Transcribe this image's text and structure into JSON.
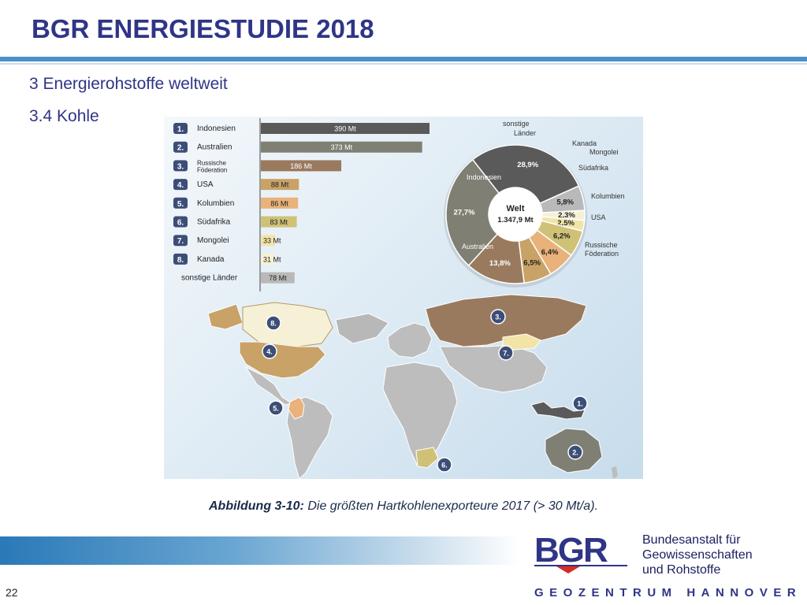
{
  "header": {
    "title": "BGR ENERGIESTUDIE 2018",
    "section": "3 Energierohstoffe weltweit",
    "subsection": "3.4 Kohle"
  },
  "colors": {
    "title": "#2f3586",
    "accent": "#4a90c8",
    "indonesien": "#5a5a5a",
    "australien": "#7f7f74",
    "russland": "#9a7a5e",
    "usa": "#c9a267",
    "kolumbien": "#e8b27a",
    "suedafrika": "#cfc277",
    "mongolei": "#f2e4a6",
    "kanada": "#f6f0d6",
    "sonstige": "#b9b9b9"
  },
  "chart_data": [
    {
      "type": "bar",
      "orientation": "horizontal",
      "unit": "Mt",
      "categories": [
        "Indonesien",
        "Australien",
        "Russische Föderation",
        "USA",
        "Kolumbien",
        "Südafrika",
        "Mongolei",
        "Kanada",
        "sonstige Länder"
      ],
      "ranks": [
        "1.",
        "2.",
        "3.",
        "4.",
        "5.",
        "6.",
        "7.",
        "8.",
        ""
      ],
      "values": [
        390,
        373,
        186,
        88,
        86,
        83,
        33,
        31,
        78
      ],
      "value_labels": [
        "390 Mt",
        "373 Mt",
        "186 Mt",
        "88 Mt",
        "86 Mt",
        "83 Mt",
        "33 Mt",
        "31 Mt",
        "78 Mt"
      ],
      "colors": [
        "#5a5a5a",
        "#7f7f74",
        "#9a7a5e",
        "#c9a267",
        "#e8b27a",
        "#cfc277",
        "#f2e4a6",
        "#f6f0d6",
        "#b9b9b9"
      ]
    },
    {
      "type": "pie",
      "center_label": "Welt",
      "center_value": "1.347,9 Mt",
      "slices": [
        {
          "label": "Indonesien",
          "value": 28.9,
          "value_label": "28,9%",
          "color": "#5a5a5a"
        },
        {
          "label": "sonstige Länder",
          "value": 5.8,
          "value_label": "5,8%",
          "color": "#b9b9b9"
        },
        {
          "label": "Kanada",
          "value": 2.3,
          "value_label": "2,3%",
          "color": "#f6f0d6"
        },
        {
          "label": "Mongolei",
          "value": 2.5,
          "value_label": "2,5%",
          "color": "#f2e4a6"
        },
        {
          "label": "Südafrika",
          "value": 6.2,
          "value_label": "6,2%",
          "color": "#cfc277"
        },
        {
          "label": "Kolumbien",
          "value": 6.4,
          "value_label": "6,4%",
          "color": "#e8b27a"
        },
        {
          "label": "USA",
          "value": 6.5,
          "value_label": "6,5%",
          "color": "#c9a267"
        },
        {
          "label": "Russische Föderation",
          "value": 13.8,
          "value_label": "13,8%",
          "color": "#9a7a5e"
        },
        {
          "label": "Australien",
          "value": 27.7,
          "value_label": "27,7%",
          "color": "#7f7f74"
        }
      ]
    }
  ],
  "pie_outer_labels": {
    "sonstige_line1": "sonstige",
    "sonstige_line2": "Länder",
    "kanada": "Kanada",
    "mongolei": "Mongolei",
    "suedafrika": "Südafrika",
    "kolumbien": "Kolumbien",
    "usa": "USA",
    "russland_line1": "Russische",
    "russland_line2": "Föderation",
    "indonesien": "Indonesien",
    "australien": "Australien"
  },
  "map_markers": [
    "1.",
    "2.",
    "3.",
    "4.",
    "5.",
    "6.",
    "7.",
    "8."
  ],
  "caption": {
    "bold": "Abbildung 3-10:",
    "text": " Die größten Hartkohlenexporteure 2017 (> 30 Mt/a)."
  },
  "footer": {
    "logo_text": "BGR",
    "org_line1": "Bundesanstalt für",
    "org_line2": "Geowissenschaften",
    "org_line3": "und Rohstoffe",
    "geozentrum": "GEOZENTRUM HANNOVER",
    "page": "22"
  }
}
